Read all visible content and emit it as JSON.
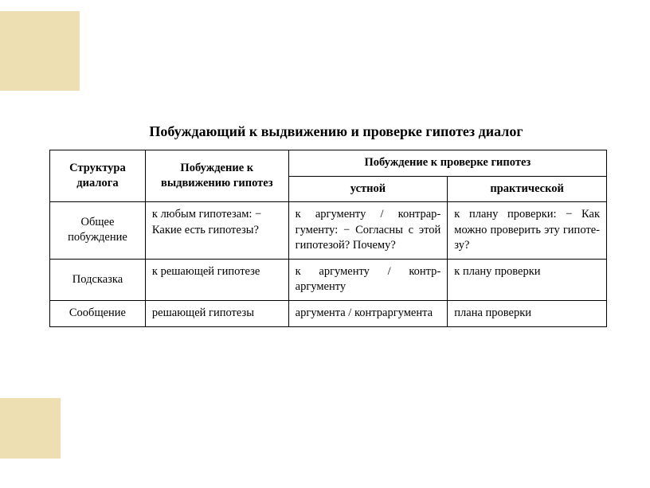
{
  "slide": {
    "title": "Побуждающий к выдвижению и проверке гипотез диалог",
    "table": {
      "columns": {
        "col1_header": "Структура диалога",
        "col2_header": "Побуждение к выдвижению гипотез",
        "col34_group_header": "Побуждение к проверке гипотез",
        "col3_header": "устной",
        "col4_header": "практической"
      },
      "rows": [
        {
          "label": "Общее побуждение",
          "c2": "к любым гипотезам: − Какие есть гипотезы?",
          "c3": "к аргументу / контрар­гументу: − Согласны с этой гипотезой? Поче­му?",
          "c4": "к плану проверки: − Как можно про­верить эту гипоте­зу?"
        },
        {
          "label": "Подсказка",
          "c2": "к решающей гипотезе",
          "c3": "к аргументу / контр­аргументу",
          "c4": "к плану проверки"
        },
        {
          "label": "Сообщение",
          "c2": "решающей гипотезы",
          "c3": "аргумента / контрар­гумента",
          "c4": "плана проверки"
        }
      ]
    },
    "colors": {
      "bg": "#ffffff",
      "accent_band": "#eddfb2",
      "border": "#000000",
      "text": "#000000"
    }
  }
}
